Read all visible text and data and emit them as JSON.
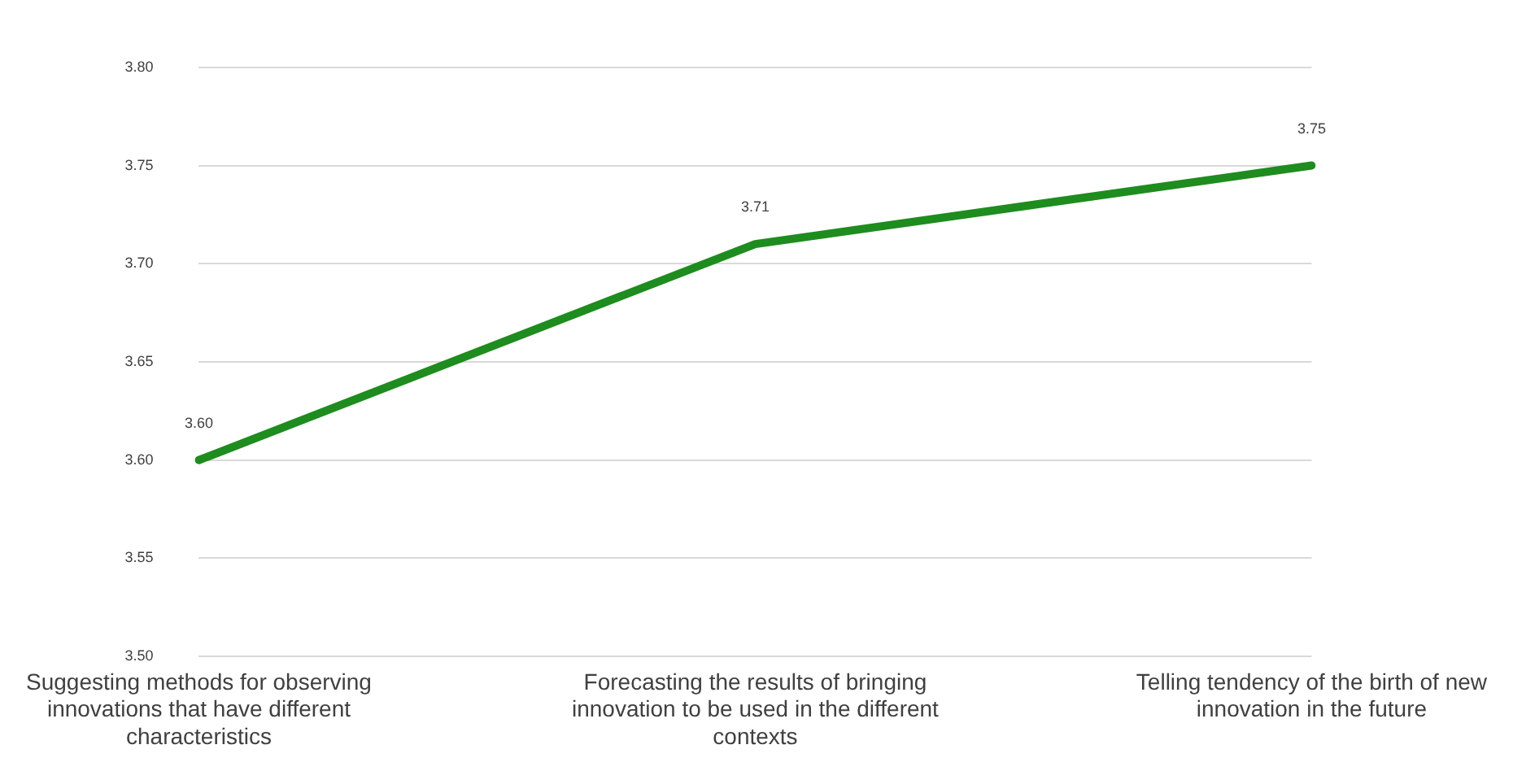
{
  "chart_data": {
    "type": "line",
    "categories": [
      "Suggesting methods for observing innovations that have different characteristics",
      "Forecasting the results of bringing innovation to be used in the different contexts",
      "Telling tendency of the birth of new innovation in the future"
    ],
    "series": [
      {
        "color": "#1e8c1e",
        "values": [
          3.6,
          3.71,
          3.75
        ],
        "value_labels": [
          "3.60",
          "3.71",
          "3.75"
        ]
      }
    ],
    "ylim": [
      3.5,
      3.8
    ],
    "yticks": [
      {
        "value": 3.5,
        "label": "3.50"
      },
      {
        "value": 3.55,
        "label": "3.55"
      },
      {
        "value": 3.6,
        "label": "3.60"
      },
      {
        "value": 3.65,
        "label": "3.65"
      },
      {
        "value": 3.7,
        "label": "3.70"
      },
      {
        "value": 3.75,
        "label": "3.75"
      },
      {
        "value": 3.8,
        "label": "3.80"
      }
    ],
    "grid": "y",
    "legend": false,
    "marker": "none",
    "line_style": "solid"
  }
}
